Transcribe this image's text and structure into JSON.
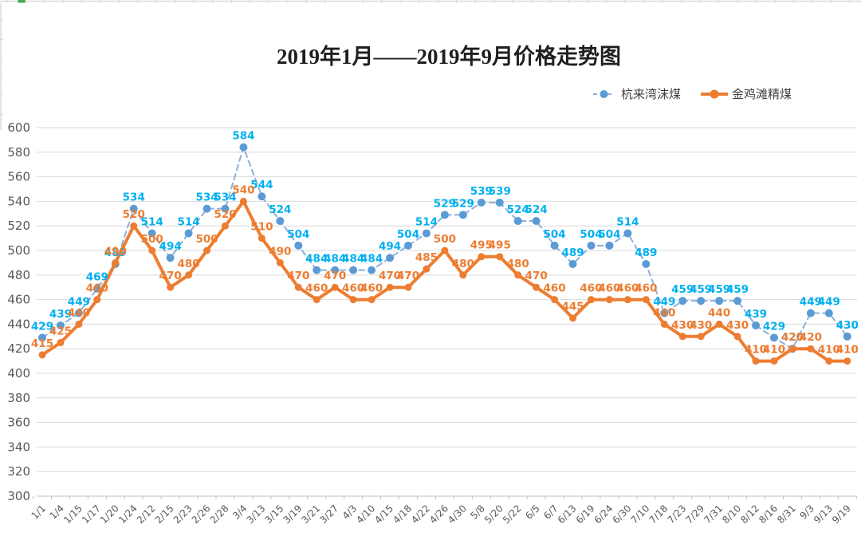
{
  "window": {
    "background": "#ffffff"
  },
  "decor": {
    "sheet_edge_color": "#d9d9d9",
    "sheet_accent_color": "#44a94c"
  },
  "chart_data": {
    "type": "line",
    "title": "2019年1月——2019年9月价格走势图",
    "categories": [
      "1/1",
      "1/4",
      "1/15",
      "1/17",
      "1/20",
      "1/24",
      "2/12",
      "2/15",
      "2/23",
      "2/26",
      "2/28",
      "3/4",
      "3/13",
      "3/15",
      "3/19",
      "3/21",
      "3/27",
      "4/3",
      "4/10",
      "4/15",
      "4/18",
      "4/22",
      "4/26",
      "4/30",
      "5/8",
      "5/20",
      "5/22",
      "6/5",
      "6/7",
      "6/13",
      "6/19",
      "6/24",
      "6/30",
      "7/10",
      "7/18",
      "7/23",
      "7/29",
      "7/31",
      "8/10",
      "8/12",
      "8/16",
      "8/31",
      "9/3",
      "9/13",
      "9/19"
    ],
    "series": [
      {
        "name": "杭来湾沫煤",
        "style": "dashed",
        "line_color": "#8FAFDC",
        "marker_color": "#5B9BD5",
        "label_color": "#00B0F0",
        "values": [
          429,
          439,
          449,
          469,
          489,
          534,
          514,
          494,
          514,
          534,
          534,
          584,
          544,
          524,
          504,
          484,
          484,
          484,
          484,
          494,
          504,
          514,
          529,
          529,
          539,
          539,
          524,
          524,
          504,
          489,
          504,
          504,
          514,
          489,
          449,
          459,
          459,
          459,
          459,
          439,
          429,
          420,
          449,
          449,
          430
        ]
      },
      {
        "name": "金鸡滩精煤",
        "style": "solid",
        "line_color": "#ED7D31",
        "marker_color": "#ED7D31",
        "label_color": "#ED7D31",
        "values": [
          415,
          425,
          440,
          460,
          490,
          520,
          500,
          470,
          480,
          500,
          520,
          540,
          510,
          490,
          470,
          460,
          470,
          460,
          460,
          470,
          470,
          485,
          500,
          480,
          495,
          495,
          480,
          470,
          460,
          445,
          460,
          460,
          460,
          460,
          440,
          430,
          430,
          440,
          430,
          410,
          410,
          420,
          420,
          410,
          410
        ]
      }
    ],
    "ylim": [
      300,
      600
    ],
    "yticks": [
      300,
      320,
      340,
      360,
      380,
      400,
      420,
      440,
      460,
      480,
      500,
      520,
      540,
      560,
      580,
      600
    ],
    "grid": true,
    "grid_color": "#d9d9d9",
    "axis_color": "#bfbfbf",
    "axis_text_color": "#595959",
    "legend_position": "top-right",
    "data_labels": true
  }
}
